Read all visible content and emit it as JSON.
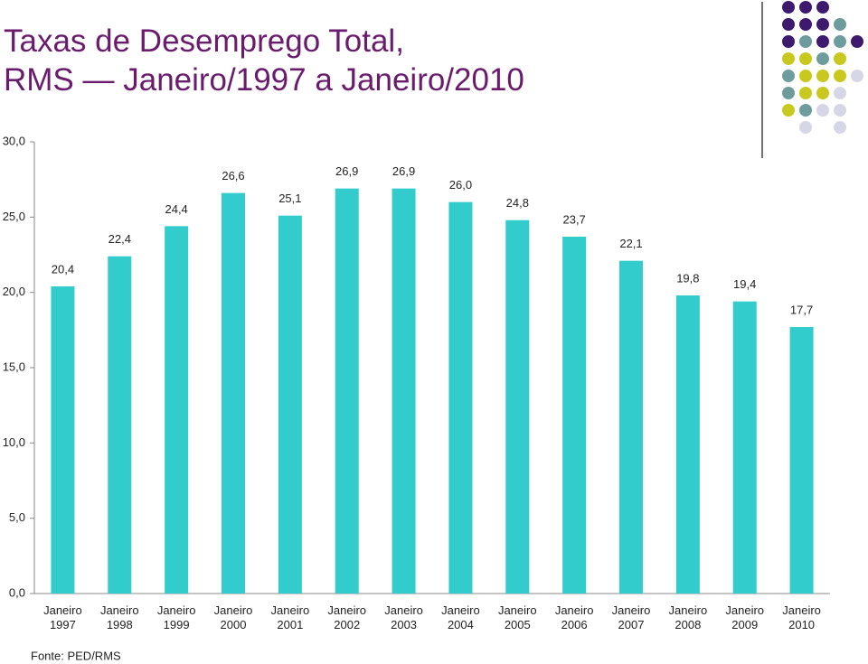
{
  "chart_data": {
    "type": "bar",
    "title": [
      "Taxas de Desemprego Total,",
      "RMS — Janeiro/1997 a Janeiro/2010"
    ],
    "categories": [
      "Janeiro 1997",
      "Janeiro 1998",
      "Janeiro 1999",
      "Janeiro 2000",
      "Janeiro 2001",
      "Janeiro 2002",
      "Janeiro 2003",
      "Janeiro 2004",
      "Janeiro 2005",
      "Janeiro 2006",
      "Janeiro 2007",
      "Janeiro 2008",
      "Janeiro 2009",
      "Janeiro 2010"
    ],
    "values": [
      20.4,
      22.4,
      24.4,
      26.6,
      25.1,
      26.9,
      26.9,
      26.0,
      24.8,
      23.7,
      22.1,
      19.8,
      19.4,
      17.7
    ],
    "value_labels": [
      "20,4",
      "22,4",
      "24,4",
      "26,6",
      "25,1",
      "26,9",
      "26,9",
      "26,0",
      "24,8",
      "23,7",
      "22,1",
      "19,8",
      "19,4",
      "17,7"
    ],
    "color": "#33cccc",
    "ylim": [
      0,
      30
    ],
    "yticks": [
      {
        "value": 0,
        "label": "0,0"
      },
      {
        "value": 5,
        "label": "5,0"
      },
      {
        "value": 10,
        "label": "10,0"
      },
      {
        "value": 15,
        "label": "15,0"
      },
      {
        "value": 20,
        "label": "20,0"
      },
      {
        "value": 25,
        "label": "25,0"
      },
      {
        "value": 30,
        "label": "30,0"
      }
    ],
    "source": "Fonte: PED/RMS"
  }
}
